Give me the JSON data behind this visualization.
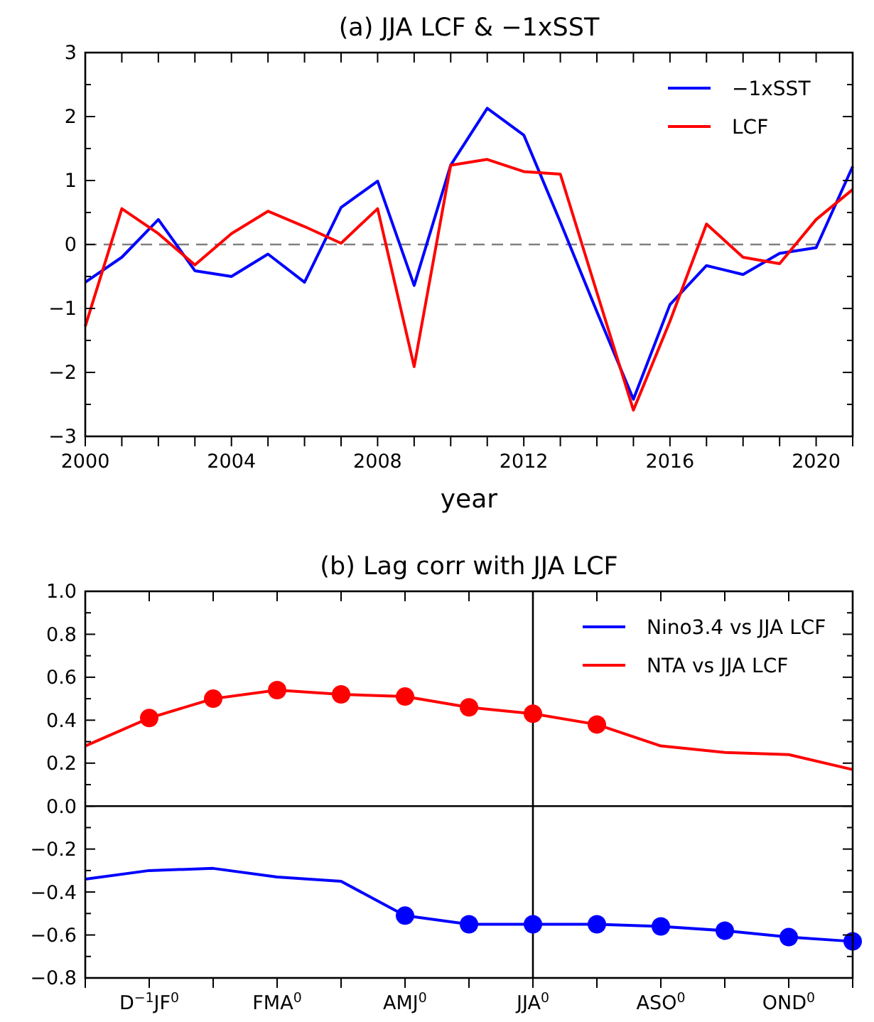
{
  "chart_data": [
    {
      "type": "line",
      "title": "(a) JJA LCF & −1xSST",
      "xlabel": "year",
      "x": [
        2000,
        2001,
        2002,
        2003,
        2004,
        2005,
        2006,
        2007,
        2008,
        2009,
        2010,
        2011,
        2012,
        2013,
        2014,
        2015,
        2016,
        2017,
        2018,
        2019,
        2020,
        2021
      ],
      "series": [
        {
          "name": "−1xSST",
          "color": "#0000ff",
          "values": [
            -0.59,
            -0.2,
            0.39,
            -0.41,
            -0.5,
            -0.15,
            -0.59,
            0.58,
            0.99,
            -0.64,
            1.24,
            2.13,
            1.71,
            0.35,
            -1.05,
            -2.42,
            -0.94,
            -0.33,
            -0.47,
            -0.14,
            -0.05,
            1.22
          ]
        },
        {
          "name": "LCF",
          "color": "#ff0000",
          "values": [
            -1.28,
            0.56,
            0.17,
            -0.32,
            0.17,
            0.52,
            0.28,
            0.02,
            0.56,
            -1.91,
            1.24,
            1.33,
            1.14,
            1.1,
            -0.75,
            -2.59,
            -1.2,
            0.32,
            -0.2,
            -0.3,
            0.39,
            0.86
          ]
        }
      ],
      "xlim": [
        2000,
        2021
      ],
      "xticks": [
        2000,
        {
          "value": 2001,
          "label": null
        },
        {
          "value": 2002,
          "label": null
        },
        {
          "value": 2003,
          "label": null
        },
        2004,
        {
          "value": 2005,
          "label": null
        },
        {
          "value": 2006,
          "label": null
        },
        {
          "value": 2007,
          "label": null
        },
        2008,
        {
          "value": 2009,
          "label": null
        },
        {
          "value": 2010,
          "label": null
        },
        {
          "value": 2011,
          "label": null
        },
        2012,
        {
          "value": 2013,
          "label": null
        },
        {
          "value": 2014,
          "label": null
        },
        {
          "value": 2015,
          "label": null
        },
        2016,
        {
          "value": 2017,
          "label": null
        },
        {
          "value": 2018,
          "label": null
        },
        {
          "value": 2019,
          "label": null
        },
        2020,
        {
          "value": 2021,
          "label": null
        }
      ],
      "ylim": [
        -3,
        3
      ],
      "yticks": [
        {
          "value": -3,
          "label": "−3"
        },
        {
          "value": -2.5,
          "label": null
        },
        {
          "value": -2,
          "label": "−2"
        },
        {
          "value": -1.5,
          "label": null
        },
        {
          "value": -1,
          "label": "−1"
        },
        {
          "value": -0.5,
          "label": null
        },
        0,
        {
          "value": 0.5,
          "label": null
        },
        1,
        {
          "value": 1.5,
          "label": null
        },
        2,
        {
          "value": 2.5,
          "label": null
        },
        3
      ],
      "ref_lines": [
        {
          "axis": "y",
          "value": 0,
          "color": "#808080",
          "line_style": "dashed"
        }
      ],
      "legend": "top right"
    },
    {
      "type": "line",
      "title": "(b) Lag corr with JJA LCF",
      "categories": [
        null,
        "D$^{−1}$JF$^{0}$",
        null,
        "FMA$^{0}$",
        null,
        "AMJ$^{0}$",
        null,
        "JJA$^{0}$",
        null,
        "ASO$^{0}$",
        null,
        "OND$^{0}$",
        null
      ],
      "series": [
        {
          "name": "Nino3.4 vs JJA LCF",
          "color": "#0000ff",
          "values": [
            -0.34,
            -0.3,
            -0.29,
            -0.33,
            -0.35,
            -0.51,
            -0.55,
            -0.55,
            -0.55,
            -0.56,
            -0.58,
            -0.61,
            -0.63
          ]
        },
        {
          "name": "NTA vs JJA LCF",
          "color": "#ff0000",
          "values": [
            0.28,
            0.41,
            0.5,
            0.54,
            0.52,
            0.51,
            0.46,
            0.43,
            0.38,
            0.28,
            0.25,
            0.24,
            0.17
          ]
        },
        {
          "type": "scatter",
          "marker": "circle",
          "color": "#0000ff",
          "values": [
            null,
            null,
            null,
            null,
            null,
            -0.51,
            -0.55,
            -0.55,
            -0.55,
            -0.56,
            -0.58,
            -0.61,
            -0.63
          ]
        },
        {
          "type": "scatter",
          "marker": "circle",
          "color": "#ff0000",
          "values": [
            null,
            0.41,
            0.5,
            0.54,
            0.52,
            0.51,
            0.46,
            0.43,
            0.38,
            null,
            null,
            null,
            null
          ]
        }
      ],
      "ylim": [
        -0.8,
        1.0
      ],
      "yticks": [
        {
          "value": -0.8,
          "label": "−0.8"
        },
        {
          "value": -0.7,
          "label": null
        },
        {
          "value": -0.6,
          "label": "−0.6"
        },
        {
          "value": -0.5,
          "label": null
        },
        {
          "value": -0.4,
          "label": "−0.4"
        },
        {
          "value": -0.3,
          "label": null
        },
        {
          "value": -0.2,
          "label": "−0.2"
        },
        {
          "value": -0.1,
          "label": null
        },
        {
          "value": 0,
          "label": "0.0"
        },
        {
          "value": 0.1,
          "label": null
        },
        {
          "value": 0.2,
          "label": "0.2"
        },
        {
          "value": 0.3,
          "label": null
        },
        {
          "value": 0.4,
          "label": "0.4"
        },
        {
          "value": 0.5,
          "label": null
        },
        {
          "value": 0.6,
          "label": "0.6"
        },
        {
          "value": 0.7,
          "label": null
        },
        {
          "value": 0.8,
          "label": "0.8"
        },
        {
          "value": 0.9,
          "label": null
        },
        {
          "value": 1.0,
          "label": "1.0"
        }
      ],
      "ref_lines": [
        {
          "axis": "y",
          "value": 0,
          "color": "#000000"
        },
        {
          "axis": "x",
          "value": "JJA$^{0}$",
          "color": "#000000"
        }
      ],
      "legend": "top right"
    }
  ]
}
